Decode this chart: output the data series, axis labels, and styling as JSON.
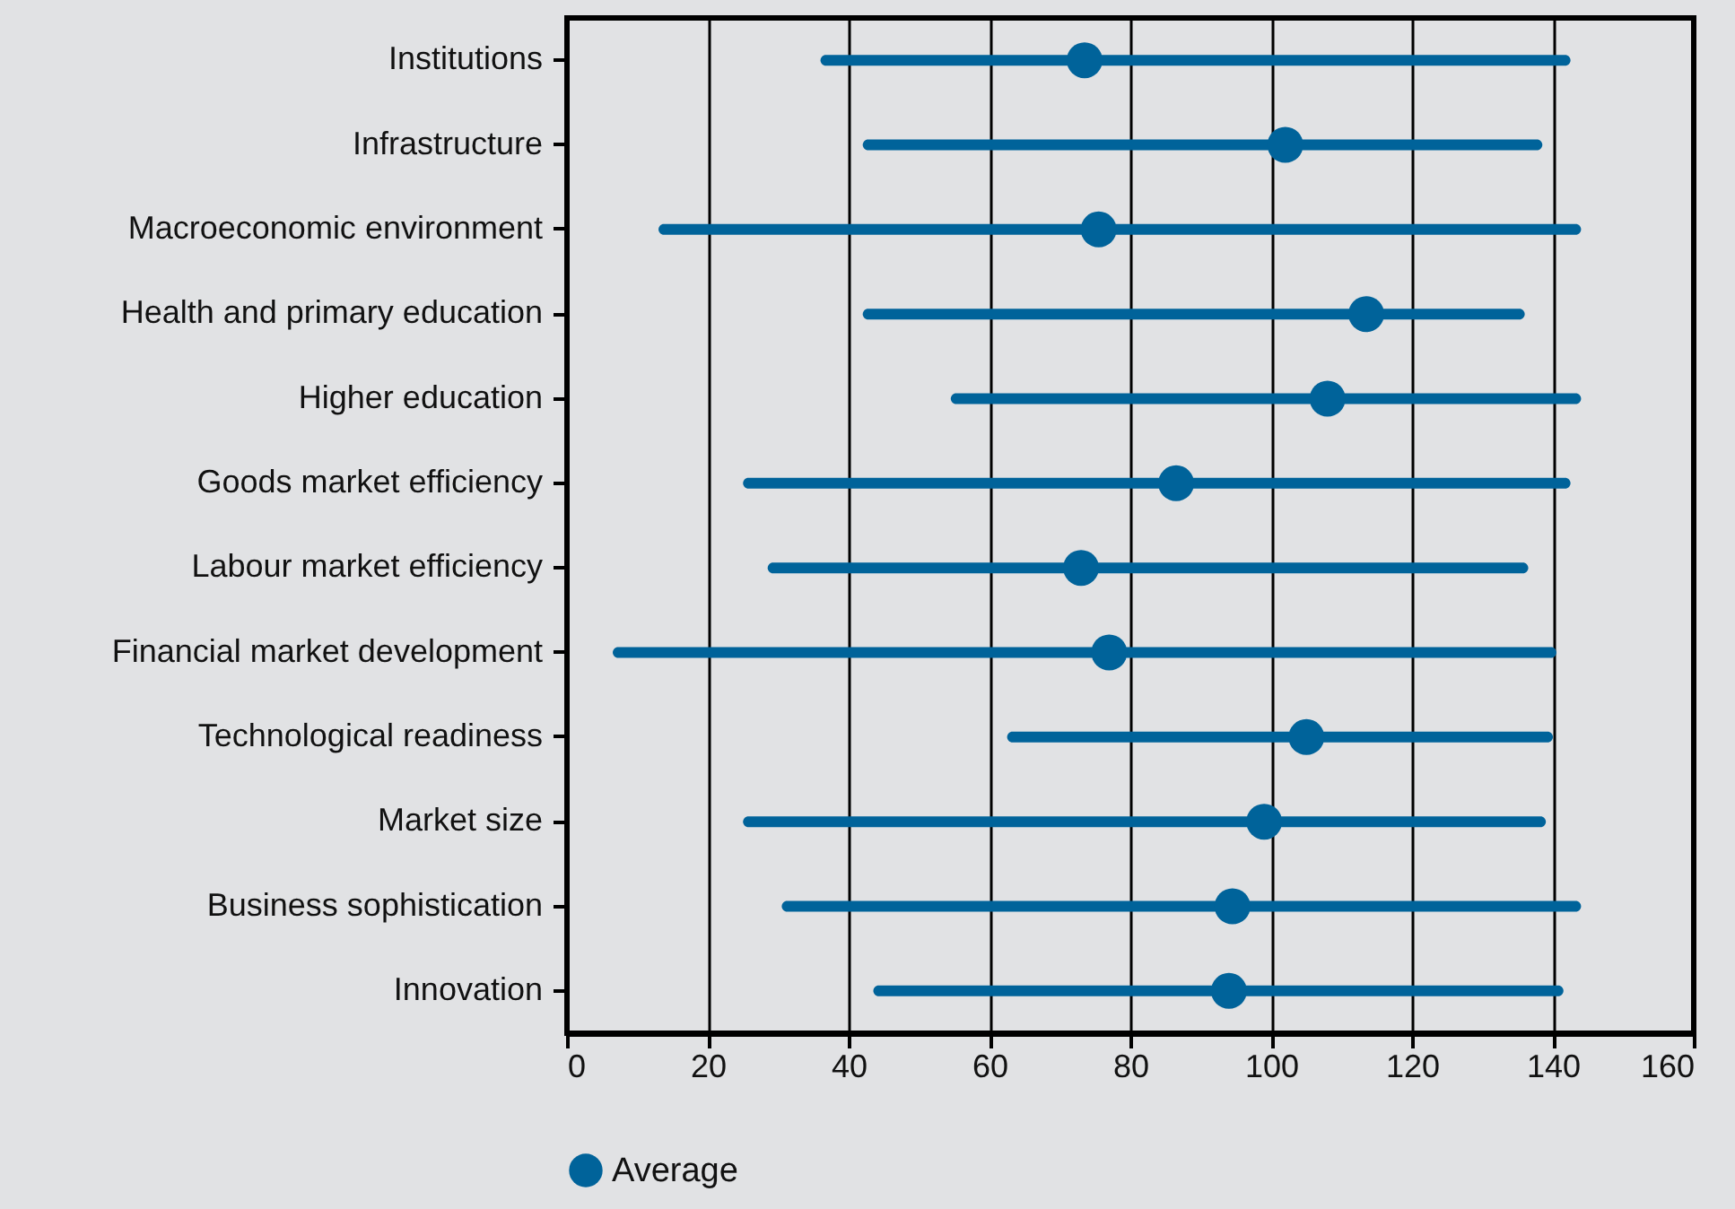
{
  "chart_data": {
    "type": "bar",
    "orientation": "horizontal",
    "categories": [
      "Institutions",
      "Infrastructure",
      "Macroeconomic environment",
      "Health and primary education",
      "Higher education",
      "Goods market efficiency",
      "Labour market efficiency",
      "Financial market development",
      "Technological readiness",
      "Market size",
      "Business sophistication",
      "Innovation"
    ],
    "series": [
      {
        "color": "#00639a",
        "base": [
          36,
          42,
          13,
          42,
          54.5,
          25,
          28.5,
          6.5,
          62.5,
          25,
          30.5,
          43.5
        ],
        "values": [
          106.5,
          96.5,
          131,
          94,
          89.5,
          117.5,
          108,
          134,
          77.5,
          114,
          113.5,
          98
        ]
      },
      {
        "type": "scatter",
        "name": "Average",
        "color": "#00639a",
        "values": [
          73.5,
          102,
          75.5,
          113.5,
          108,
          86.5,
          73,
          77,
          105,
          99,
          94.5,
          94
        ]
      }
    ],
    "xlim": [
      0,
      160
    ],
    "xticks": [
      0,
      20,
      40,
      60,
      80,
      100,
      120,
      140,
      160
    ],
    "grid": "x",
    "legend": "bottom",
    "marker": "circle"
  }
}
